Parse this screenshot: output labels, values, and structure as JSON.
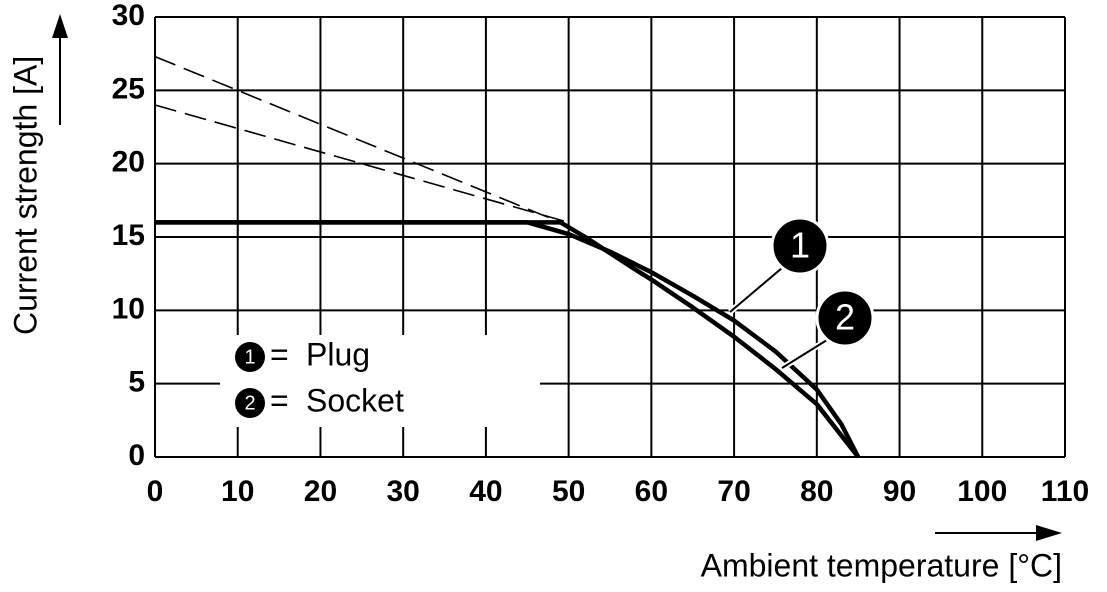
{
  "chart_data": {
    "type": "line",
    "xlabel": "Ambient temperature [°C]",
    "ylabel": "Current strength [A]",
    "xlim": [
      0,
      110
    ],
    "xticks": [
      0,
      10,
      20,
      30,
      40,
      50,
      60,
      70,
      80,
      90,
      100,
      110
    ],
    "ylim": [
      0,
      30
    ],
    "yticks": [
      0,
      5,
      10,
      15,
      20,
      25,
      30
    ],
    "grid": true,
    "legend_separator": "=",
    "series": [
      {
        "name": "Plug",
        "label": "1",
        "color": "#000000",
        "x": [
          0,
          45,
          50,
          55,
          60,
          65,
          70,
          75,
          80,
          83,
          85
        ],
        "values": [
          16,
          16,
          15.2,
          14,
          12.6,
          11,
          9.3,
          7.2,
          4.6,
          2.2,
          0
        ],
        "extrapolation": {
          "x": [
            0,
            50
          ],
          "values": [
            24,
            16
          ]
        }
      },
      {
        "name": "Socket",
        "label": "2",
        "color": "#000000",
        "x": [
          0,
          49,
          52,
          55,
          58,
          60,
          65,
          70,
          75,
          80,
          85
        ],
        "values": [
          16,
          16,
          15,
          13.9,
          12.8,
          12.1,
          10.2,
          8.2,
          6,
          3.6,
          0
        ],
        "extrapolation": {
          "x": [
            0,
            49
          ],
          "values": [
            27.3,
            16
          ]
        }
      }
    ]
  }
}
